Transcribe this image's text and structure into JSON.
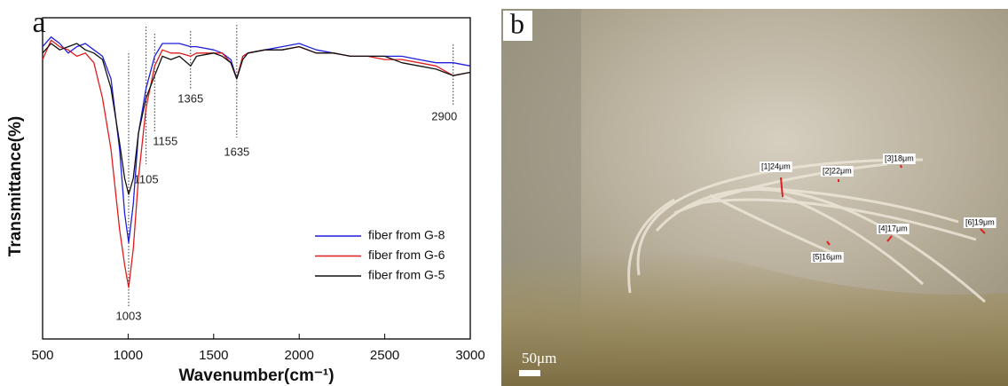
{
  "chart_data": {
    "type": "line",
    "panel_label": "a",
    "x_label": "Wavenumber(cm⁻¹)",
    "y_label": "Transmittance(%)",
    "x": [
      500,
      550,
      600,
      650,
      700,
      750,
      800,
      850,
      900,
      950,
      980,
      1003,
      1030,
      1060,
      1105,
      1155,
      1200,
      1250,
      1300,
      1365,
      1400,
      1500,
      1550,
      1600,
      1635,
      1670,
      1700,
      1800,
      1900,
      2000,
      2100,
      2200,
      2300,
      2400,
      2500,
      2600,
      2700,
      2800,
      2900,
      3000
    ],
    "series": [
      {
        "name": "fiber from G-8",
        "color": "#1f1fdc",
        "values": [
          91,
          94,
          92,
          89,
          91,
          92,
          90,
          88,
          81,
          59,
          39,
          30,
          42,
          64,
          78,
          88,
          92,
          92,
          92,
          91,
          91,
          90,
          89,
          87,
          81,
          88,
          89,
          90,
          91,
          92,
          90,
          89,
          88,
          88,
          88,
          88,
          87,
          86,
          86,
          85
        ]
      },
      {
        "name": "fiber from G-6",
        "color": "#e01c1c",
        "values": [
          87,
          93,
          91,
          90,
          88,
          89,
          86,
          75,
          59,
          34,
          23,
          16,
          28,
          50,
          72,
          85,
          90,
          89,
          89,
          88,
          89,
          89,
          89,
          86,
          81,
          88,
          89,
          90,
          90,
          91,
          89,
          89,
          88,
          88,
          87,
          87,
          86,
          85,
          82,
          83
        ]
      },
      {
        "name": "fiber from G-5",
        "color": "#111111",
        "values": [
          89,
          92,
          90,
          91,
          92,
          90,
          89,
          87,
          78,
          61,
          50,
          45,
          50,
          64,
          75,
          82,
          88,
          87,
          88,
          85,
          88,
          89,
          88,
          86,
          81,
          87,
          89,
          90,
          90,
          91,
          89,
          89,
          88,
          88,
          88,
          86,
          85,
          84,
          82,
          83
        ]
      }
    ],
    "peaks": [
      1003,
      1105,
      1155,
      1365,
      1635,
      2900
    ],
    "xlim": [
      500,
      3000
    ],
    "xticks": [
      500,
      1000,
      1500,
      2000,
      2500,
      3000
    ],
    "ylim": [
      0,
      100
    ],
    "legend": "lower right"
  },
  "image_panel": {
    "panel_label": "b",
    "measurements": [
      "[1]24μm",
      "[2]22μm",
      "[3]18μm",
      "[4]17μm",
      "[5]16μm",
      "[6]19μm"
    ],
    "scale_bar": "50μm"
  }
}
